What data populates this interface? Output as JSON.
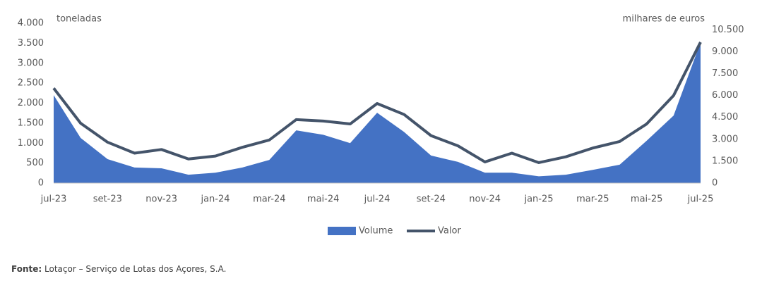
{
  "chart_data": {
    "type": "combo",
    "y_label": "toneladas",
    "y2_label": "milhares de euros",
    "categories": [
      "jul-23",
      null,
      "set-23",
      null,
      "nov-23",
      null,
      "jan-24",
      null,
      "mar-24",
      null,
      "mai-24",
      null,
      "jul-24",
      null,
      "set-24",
      null,
      "nov-24",
      null,
      "jan-25",
      null,
      "mar-25",
      null,
      "mai-25",
      null,
      "jul-25"
    ],
    "series": [
      {
        "name": "Volume",
        "type": "area",
        "color": "#4472c4",
        "axis": "y",
        "values": [
          2200,
          1130,
          600,
          390,
          370,
          210,
          260,
          390,
          580,
          1320,
          1210,
          1000,
          1760,
          1280,
          690,
          530,
          260,
          260,
          170,
          210,
          330,
          460,
          1060,
          1690,
          3520
        ]
      },
      {
        "name": "Valor",
        "type": "line",
        "color": "#44546a",
        "axis": "y2",
        "values": [
          6500,
          4100,
          2800,
          2050,
          2300,
          1650,
          1850,
          2450,
          2950,
          4350,
          4250,
          4050,
          5450,
          4700,
          3250,
          2550,
          1450,
          2050,
          1400,
          1800,
          2400,
          2850,
          4050,
          6000,
          9650
        ]
      }
    ],
    "ylim": [
      0,
      4000
    ],
    "yticks": [
      0,
      500,
      {
        "value": 1000,
        "label": "1.000"
      },
      {
        "value": 1500,
        "label": "1.500"
      },
      {
        "value": 2000,
        "label": "2.000"
      },
      {
        "value": 2500,
        "label": "2.500"
      },
      {
        "value": 3000,
        "label": "3.000"
      },
      {
        "value": 3500,
        "label": "3.500"
      },
      {
        "value": 4000,
        "label": "4.000"
      }
    ],
    "y2lim": [
      0,
      10950
    ],
    "y2ticks": [
      0,
      {
        "value": 1500,
        "label": "1.500"
      },
      {
        "value": 3000,
        "label": "3.000"
      },
      {
        "value": 4500,
        "label": "4.500"
      },
      {
        "value": 6000,
        "label": "6.000"
      },
      {
        "value": 7500,
        "label": "7.500"
      },
      {
        "value": 9000,
        "label": "9.000"
      },
      {
        "value": 10500,
        "label": "10.500"
      }
    ],
    "grid": false,
    "legend": "bottom",
    "source_label": "Fonte:",
    "source_text": "Lotaçor – Serviço de Lotas dos Açores, S.A."
  }
}
